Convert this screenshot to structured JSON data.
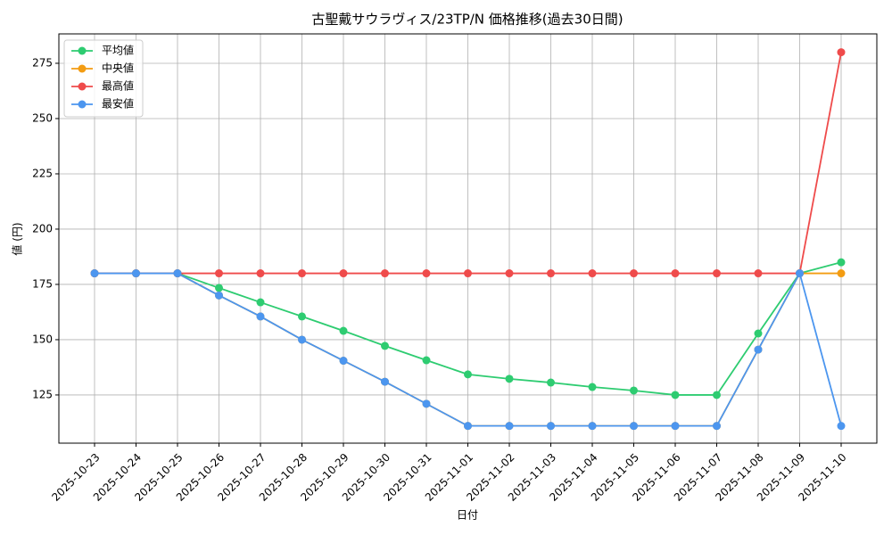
{
  "chart_data": {
    "type": "line",
    "title": "古聖戴サウラヴィス/23TP/N 価格推移(過去30日間)",
    "x_label": "日付",
    "y_label": "値 (円)",
    "categories": [
      "2025-10-23",
      "2025-10-24",
      "2025-10-25",
      "2025-10-26",
      "2025-10-27",
      "2025-10-28",
      "2025-10-29",
      "2025-10-30",
      "2025-10-31",
      "2025-11-01",
      "2025-11-02",
      "2025-11-03",
      "2025-11-04",
      "2025-11-05",
      "2025-11-06",
      "2025-11-07",
      "2025-11-08",
      "2025-11-09",
      "2025-11-10"
    ],
    "series": [
      {
        "name": "平均値",
        "color": "#2ecc71",
        "values": [
          180,
          180,
          180,
          173.4,
          166.9,
          160.5,
          154,
          147.2,
          140.7,
          134.3,
          132.3,
          130.6,
          128.6,
          127,
          125,
          125,
          152.8,
          180,
          185
        ]
      },
      {
        "name": "中央値",
        "color": "#f39c12",
        "values": [
          180,
          180,
          180,
          170,
          160.5,
          150,
          140.5,
          131,
          121,
          111,
          111,
          111,
          111,
          111,
          111,
          111,
          145.5,
          180,
          180
        ]
      },
      {
        "name": "最高値",
        "color": "#ef4b4b",
        "values": [
          180,
          180,
          180,
          180,
          180,
          180,
          180,
          180,
          180,
          180,
          180,
          180,
          180,
          180,
          180,
          180,
          180,
          180,
          280
        ]
      },
      {
        "name": "最安値",
        "color": "#4c96ef",
        "values": [
          180,
          180,
          180,
          170,
          160.5,
          150,
          140.5,
          131,
          121,
          111,
          111,
          111,
          111,
          111,
          111,
          111,
          145.5,
          180,
          111
        ]
      }
    ],
    "ylim": [
      103.2,
      288.3
    ],
    "yticks": [
      125,
      150,
      175,
      200,
      225,
      250,
      275
    ],
    "grid": true,
    "legend": "upper left"
  }
}
